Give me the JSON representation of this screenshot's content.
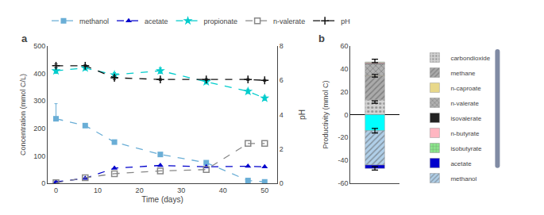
{
  "chart_data": [
    {
      "type": "line",
      "title": "a",
      "xlabel": "Time (days)",
      "ylabel": "Concentration (mmol C/L)",
      "y2label": "pH",
      "x": [
        0,
        7,
        14,
        25,
        36,
        46,
        50
      ],
      "series": [
        {
          "name": "methanol",
          "color": "#6aaed6",
          "marker": "square",
          "line_style": "dash",
          "values": [
            235,
            210,
            150,
            105,
            75,
            10,
            5
          ],
          "error_minus": [
            0,
            0,
            0,
            0,
            0,
            0,
            0
          ],
          "error_plus": [
            55,
            0,
            0,
            0,
            0,
            0,
            0
          ]
        },
        {
          "name": "acetate",
          "color": "#0000cc",
          "marker": "triangle-up",
          "line_style": "dash",
          "values": [
            5,
            18,
            55,
            65,
            60,
            62,
            60
          ]
        },
        {
          "name": "propionate",
          "color": "#00cccc",
          "marker": "star",
          "line_style": "dash",
          "values": [
            410,
            420,
            395,
            410,
            370,
            335,
            310
          ],
          "error": [
            10,
            8,
            8,
            10,
            8,
            8,
            8
          ]
        },
        {
          "name": "n-valerate",
          "color": "#888888",
          "marker": "square-open",
          "line_style": "dash",
          "values": [
            2,
            20,
            35,
            45,
            50,
            145,
            145
          ]
        },
        {
          "name": "pH",
          "color": "#111111",
          "marker": "cross-thin",
          "line_style": "dash",
          "axis": "y2",
          "values": [
            6.85,
            6.85,
            6.15,
            6.05,
            6.05,
            6.05,
            6.0
          ],
          "error": [
            0.1,
            0.05,
            0.1,
            0.05,
            0.05,
            0.05,
            0.05
          ]
        }
      ],
      "xlim": [
        -2,
        53
      ],
      "xticks": [
        0,
        10,
        20,
        30,
        40,
        50
      ],
      "ylim": [
        0,
        500
      ],
      "yticks": [
        0,
        100,
        200,
        300,
        400,
        500
      ],
      "y2lim": [
        0,
        8
      ],
      "y2ticks": [
        0,
        2,
        4,
        6,
        8
      ],
      "grid": false,
      "legend": "top"
    },
    {
      "type": "bar",
      "title": "b",
      "stacked": true,
      "ylabel": "Productivity (mmol C)",
      "categories": [
        null
      ],
      "series": [
        {
          "name": "carbondioxide",
          "color": "#d3d3d3",
          "values": [
            13.0
          ]
        },
        {
          "name": "methane",
          "color": "#aaaaaa",
          "values": [
            21.0
          ]
        },
        {
          "name": "n-caproate",
          "color": "#e8d88a",
          "values": [
            0.3
          ]
        },
        {
          "name": "n-valerate",
          "color": "#b0b0b0",
          "values": [
            10.0
          ]
        },
        {
          "name": "isovalerate",
          "color": "#222222",
          "values": [
            0.5
          ]
        },
        {
          "name": "n-butyrate",
          "color": "#ffb6c1",
          "values": [
            0.8
          ]
        },
        {
          "name": "isobutyrate",
          "color": "#90ee90",
          "values": [
            0.4
          ]
        },
        {
          "name": "propionate",
          "color": "#00ffff",
          "values": [
            -14.0
          ]
        },
        {
          "name": "methanol",
          "color": "#b0cfe8",
          "values": [
            -30.0
          ]
        },
        {
          "name": "acetate",
          "color": "#0000cc",
          "values": [
            -3.0
          ]
        }
      ],
      "errorbars": [
        {
          "y": 47.0,
          "yerr": 1.5
        },
        {
          "y": 34.0,
          "yerr": 1.2
        },
        {
          "y": 11.0,
          "yerr": 1.0
        },
        {
          "y": -14.0,
          "yerr": 2.0
        },
        {
          "y": -47.0,
          "yerr": 1.5
        }
      ],
      "ylim": [
        -60,
        60
      ],
      "yticks": [
        -60,
        -40,
        -20,
        0,
        20,
        40,
        60
      ],
      "tick_labels": "y",
      "grid": false,
      "legend": "right"
    }
  ]
}
